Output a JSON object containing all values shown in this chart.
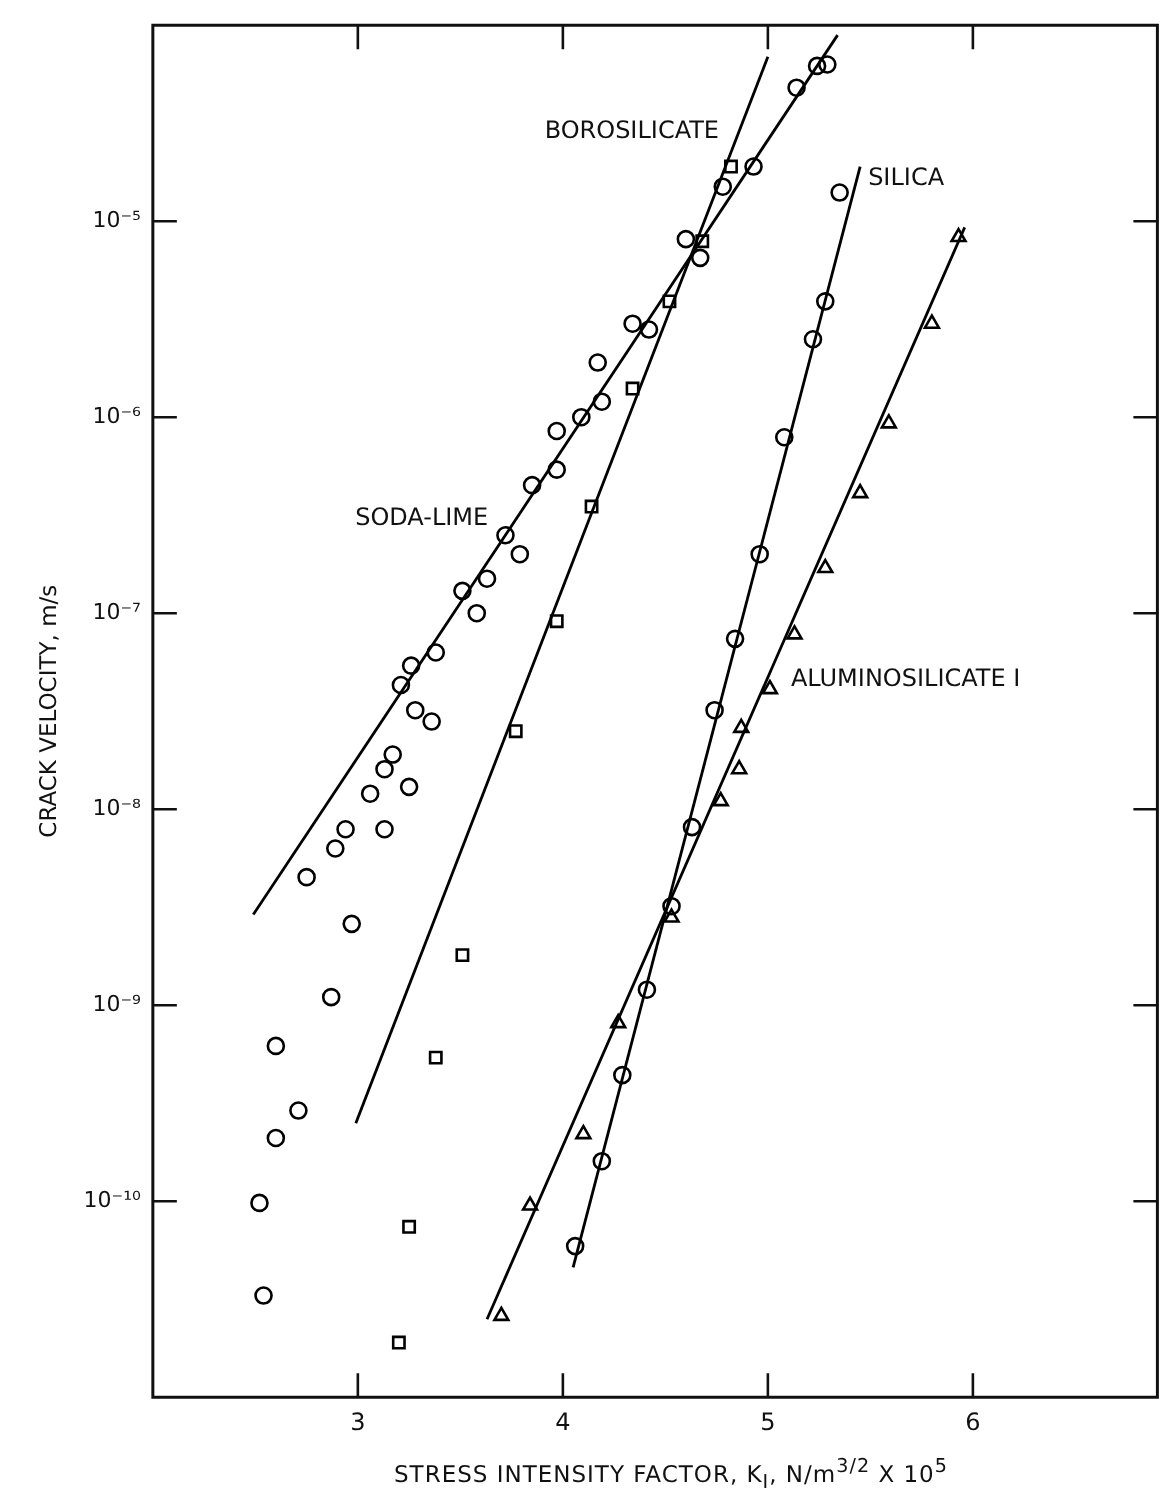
{
  "chart_data": {
    "type": "scatter",
    "xlabel": "STRESS INTENSITY FACTOR, K$_{I}$, N/m$^{3/2}$ X 10$^{5}$",
    "ylabel": "CRACK VELOCITY, m/s",
    "log": "y",
    "grid": false,
    "legend": false,
    "xlim": [
      2,
      6.9
    ],
    "xticks": [
      3,
      4,
      5,
      6
    ],
    "ylim": [
      1e-11,
      0.0001
    ],
    "yticks": [
      {
        "value": 1e-10,
        "label": "10⁻¹⁰"
      },
      {
        "value": 1e-09,
        "label": "10⁻⁹"
      },
      {
        "value": 1e-08,
        "label": "10⁻⁸"
      },
      {
        "value": 1e-07,
        "label": "10⁻⁷"
      },
      {
        "value": 1e-06,
        "label": "10⁻⁶"
      },
      {
        "value": 1e-05,
        "label": "10⁻⁵"
      }
    ],
    "series": [
      {
        "type": "scatter",
        "marker": "circle",
        "color": "#000000",
        "x": [
          4.78,
          4.6,
          4.67,
          4.34,
          4.42,
          4.17,
          4.19,
          4.09,
          3.97,
          3.97,
          3.85,
          3.72,
          3.79,
          3.63,
          3.51,
          3.58,
          3.38,
          3.26,
          3.21,
          3.28,
          3.36,
          3.17,
          3.13,
          3.06,
          3.25,
          2.94,
          3.13,
          2.89,
          2.75,
          2.97,
          2.87,
          2.6,
          2.71,
          2.6,
          2.52,
          2.54,
          5.14,
          5.24,
          5.29,
          4.93
        ],
        "values": [
          1.5e-05,
          8.1e-06,
          6.5e-06,
          3e-06,
          2.8e-06,
          1.9e-06,
          1.2e-06,
          1e-06,
          8.5e-07,
          5.4e-07,
          4.5e-07,
          2.5e-07,
          2e-07,
          1.5e-07,
          1.3e-07,
          1e-07,
          6.3e-08,
          5.4e-08,
          4.3e-08,
          3.2e-08,
          2.8e-08,
          1.9e-08,
          1.6e-08,
          1.2e-08,
          1.3e-08,
          7.9e-09,
          7.9e-09,
          6.3e-09,
          4.5e-09,
          2.6e-09,
          1.1e-09,
          6.2e-10,
          2.9e-10,
          2.1e-10,
          9.8e-11,
          3.3e-11,
          4.8e-05,
          6.2e-05,
          6.3e-05,
          1.9e-05
        ]
      },
      {
        "type": "line",
        "name": "SODA-LIME",
        "marker": "none",
        "line_style": "solid",
        "color": "#000000",
        "x": [
          2.49,
          5.34
        ],
        "values": [
          2.9e-09,
          8.9e-05
        ]
      },
      {
        "type": "scatter",
        "marker": "square",
        "color": "#000000",
        "x": [
          4.82,
          4.68,
          4.52,
          4.34,
          4.14,
          3.97,
          3.77,
          3.51,
          3.38,
          3.25,
          3.2
        ],
        "values": [
          1.9e-05,
          7.9e-06,
          3.9e-06,
          1.4e-06,
          3.5e-07,
          9.1e-08,
          2.5e-08,
          1.8e-09,
          5.4e-10,
          7.4e-11,
          1.9e-11
        ]
      },
      {
        "type": "line",
        "name": "BOROSILICATE",
        "marker": "none",
        "line_style": "solid",
        "color": "#000000",
        "x": [
          2.99,
          5.0
        ],
        "values": [
          2.5e-10,
          6.9e-05
        ]
      },
      {
        "type": "scatter",
        "marker": "circle",
        "color": "#000000",
        "x": [
          5.35,
          5.28,
          5.22,
          5.08,
          4.96,
          4.84,
          4.74,
          4.63,
          4.53,
          4.41,
          4.29,
          4.19,
          4.06
        ],
        "values": [
          1.4e-05,
          3.9e-06,
          2.5e-06,
          7.9e-07,
          2e-07,
          7.4e-08,
          3.2e-08,
          8.1e-09,
          3.2e-09,
          1.2e-09,
          4.4e-10,
          1.6e-10,
          5.9e-11
        ]
      },
      {
        "type": "line",
        "name": "SILICA",
        "marker": "none",
        "line_style": "solid",
        "color": "#000000",
        "x": [
          4.05,
          5.45
        ],
        "values": [
          4.6e-11,
          1.9e-05
        ]
      },
      {
        "type": "scatter",
        "marker": "triangle",
        "color": "#000000",
        "x": [
          5.93,
          5.8,
          5.59,
          5.45,
          5.28,
          5.13,
          5.01,
          4.87,
          4.86,
          4.77,
          4.53,
          4.27,
          4.1,
          3.84,
          3.7
        ],
        "values": [
          8.3e-06,
          3e-06,
          9.3e-07,
          4.1e-07,
          1.7e-07,
          7.8e-08,
          4.1e-08,
          2.6e-08,
          1.6e-08,
          1.1e-08,
          2.8e-09,
          8.1e-10,
          2.2e-10,
          9.5e-11,
          2.6e-11
        ]
      },
      {
        "type": "line",
        "name": "ALUMINOSILICATE I",
        "marker": "none",
        "line_style": "solid",
        "color": "#000000",
        "x": [
          3.63,
          5.96
        ],
        "values": [
          2.5e-11,
          9.3e-06
        ]
      }
    ]
  }
}
